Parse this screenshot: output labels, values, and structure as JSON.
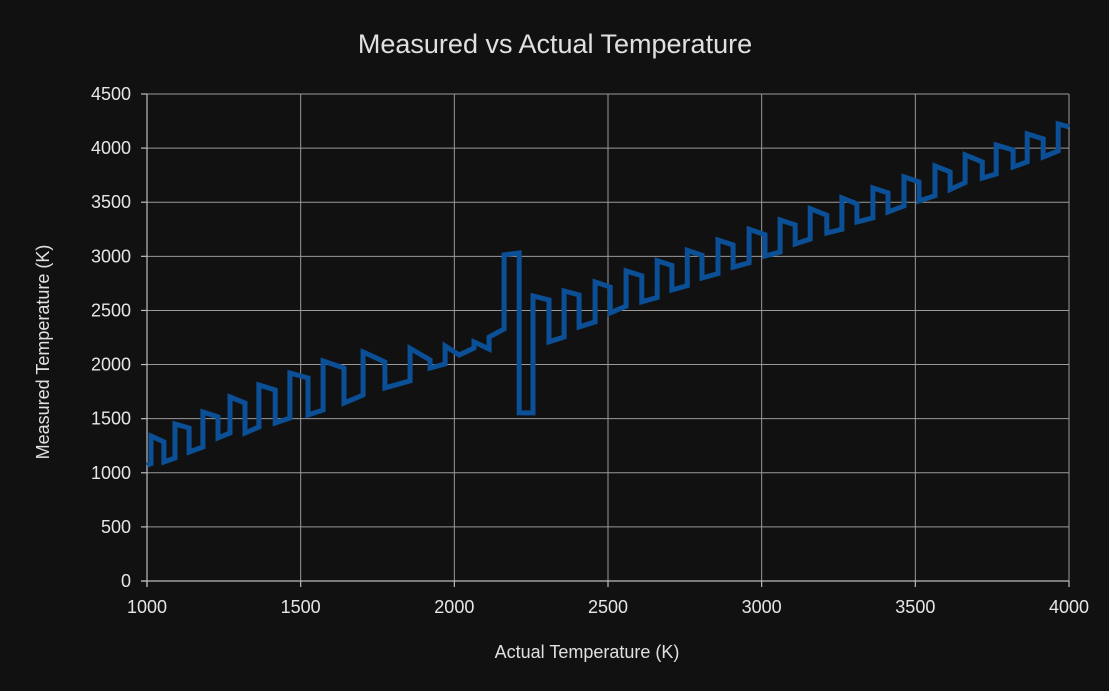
{
  "chart_data": {
    "type": "line",
    "title": "Measured vs Actual Temperature",
    "xlabel": "Actual Temperature (K)",
    "ylabel": "Measured Temperature (K)",
    "xlim": [
      1000,
      4000
    ],
    "ylim": [
      0,
      4500
    ],
    "x_ticks": [
      1000,
      1500,
      2000,
      2500,
      3000,
      3500,
      4000
    ],
    "y_ticks": [
      0,
      500,
      1000,
      1500,
      2000,
      2500,
      3000,
      3500,
      4000,
      4500
    ],
    "grid": true,
    "legend": "none",
    "series": [
      {
        "name": "Measured",
        "color": "#0b4f96",
        "x": [
          1000,
          1013,
          1013,
          1055,
          1055,
          1091,
          1091,
          1137,
          1137,
          1182,
          1182,
          1231,
          1231,
          1270,
          1270,
          1319,
          1319,
          1364,
          1364,
          1417,
          1417,
          1465,
          1465,
          1524,
          1524,
          1573,
          1573,
          1641,
          1641,
          1703,
          1703,
          1774,
          1774,
          1856,
          1856,
          1921,
          1921,
          1970,
          1970,
          2016,
          2064,
          2064,
          2113,
          2113,
          2162,
          2162,
          2211,
          2211,
          2256,
          2256,
          2308,
          2308,
          2357,
          2357,
          2406,
          2406,
          2458,
          2458,
          2507,
          2507,
          2559,
          2559,
          2610,
          2610,
          2660,
          2660,
          2708,
          2708,
          2758,
          2758,
          2806,
          2806,
          2858,
          2858,
          2907,
          2907,
          2959,
          2959,
          3011,
          3011,
          3060,
          3060,
          3109,
          3109,
          3158,
          3158,
          3212,
          3212,
          3261,
          3261,
          3310,
          3310,
          3362,
          3362,
          3411,
          3411,
          3463,
          3463,
          3512,
          3512,
          3564,
          3564,
          3613,
          3613,
          3662,
          3662,
          3718,
          3718,
          3763,
          3763,
          3818,
          3818,
          3864,
          3864,
          3916,
          3916,
          3965,
          3965,
          4000
        ],
        "y": [
          1070,
          1085,
          1340,
          1285,
          1100,
          1137,
          1451,
          1414,
          1192,
          1238,
          1562,
          1516,
          1322,
          1368,
          1700,
          1645,
          1368,
          1423,
          1811,
          1765,
          1460,
          1506,
          1922,
          1876,
          1534,
          1580,
          2033,
          1968,
          1645,
          1719,
          2116,
          2024,
          1784,
          1850,
          2150,
          2042,
          1968,
          2005,
          2172,
          2088,
          2153,
          2209,
          2144,
          2255,
          2329,
          3013,
          3031,
          1553,
          1553,
          2634,
          2597,
          2210,
          2255,
          2680,
          2643,
          2347,
          2394,
          2763,
          2717,
          2477,
          2540,
          2865,
          2820,
          2580,
          2620,
          2960,
          2915,
          2690,
          2730,
          3055,
          3010,
          2800,
          2840,
          3150,
          3105,
          2900,
          2940,
          3250,
          3200,
          3003,
          3040,
          3336,
          3290,
          3115,
          3160,
          3440,
          3380,
          3216,
          3250,
          3540,
          3485,
          3318,
          3355,
          3632,
          3586,
          3410,
          3466,
          3734,
          3688,
          3512,
          3560,
          3836,
          3780,
          3618,
          3680,
          3937,
          3873,
          3724,
          3761,
          4029,
          3983,
          3826,
          3873,
          4131,
          4085,
          3918,
          3974,
          4224,
          4196
        ]
      }
    ]
  }
}
